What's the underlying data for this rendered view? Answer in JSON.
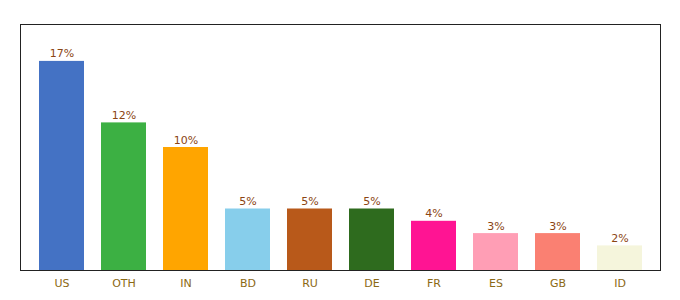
{
  "chart_data": {
    "type": "bar",
    "categories": [
      "US",
      "OTH",
      "IN",
      "BD",
      "RU",
      "DE",
      "FR",
      "ES",
      "GB",
      "ID"
    ],
    "values": [
      17,
      12,
      10,
      5,
      5,
      5,
      4,
      3,
      3,
      2
    ],
    "value_labels": [
      "17%",
      "12%",
      "10%",
      "5%",
      "5%",
      "5%",
      "4%",
      "3%",
      "3%",
      "2%"
    ],
    "colors": [
      "#4472C4",
      "#3CB043",
      "#FFA500",
      "#87CEEB",
      "#B8591A",
      "#2E6B1E",
      "#FF1493",
      "#FF9EB5",
      "#FA8072",
      "#F5F5DC"
    ],
    "ylim": [
      0,
      20
    ],
    "data_labels": true,
    "tick_labels": "x"
  }
}
